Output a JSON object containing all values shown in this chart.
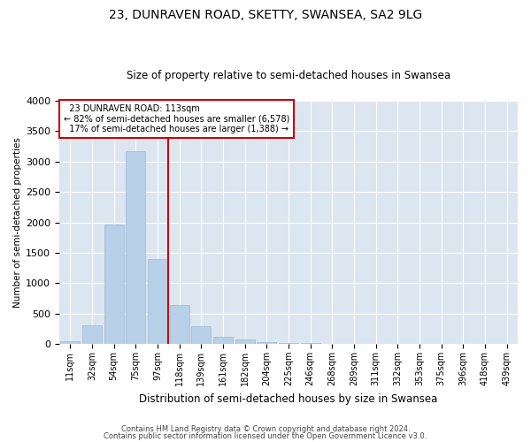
{
  "title": "23, DUNRAVEN ROAD, SKETTY, SWANSEA, SA2 9LG",
  "subtitle": "Size of property relative to semi-detached houses in Swansea",
  "xlabel": "Distribution of semi-detached houses by size in Swansea",
  "ylabel": "Number of semi-detached properties",
  "categories": [
    "11sqm",
    "32sqm",
    "54sqm",
    "75sqm",
    "97sqm",
    "118sqm",
    "139sqm",
    "161sqm",
    "182sqm",
    "204sqm",
    "225sqm",
    "246sqm",
    "268sqm",
    "289sqm",
    "311sqm",
    "332sqm",
    "353sqm",
    "375sqm",
    "396sqm",
    "418sqm",
    "439sqm"
  ],
  "values": [
    50,
    310,
    1970,
    3170,
    1400,
    640,
    285,
    120,
    70,
    30,
    15,
    8,
    5,
    5,
    0,
    0,
    0,
    0,
    0,
    0,
    0
  ],
  "bar_color": "#b8d0e8",
  "bar_edge_color": "#9ab8d4",
  "vline_x_index": 5,
  "vline_color": "#cc0000",
  "ylim": [
    0,
    4000
  ],
  "yticks": [
    0,
    500,
    1000,
    1500,
    2000,
    2500,
    3000,
    3500,
    4000
  ],
  "annotation_address": "23 DUNRAVEN ROAD: 113sqm",
  "pct_smaller": 82,
  "count_smaller": "6,578",
  "pct_larger": 17,
  "count_larger": "1,388",
  "footer1": "Contains HM Land Registry data © Crown copyright and database right 2024.",
  "footer2": "Contains public sector information licensed under the Open Government Licence v3.0.",
  "fig_bg_color": "#ffffff",
  "plot_bg_color": "#dce6f0"
}
